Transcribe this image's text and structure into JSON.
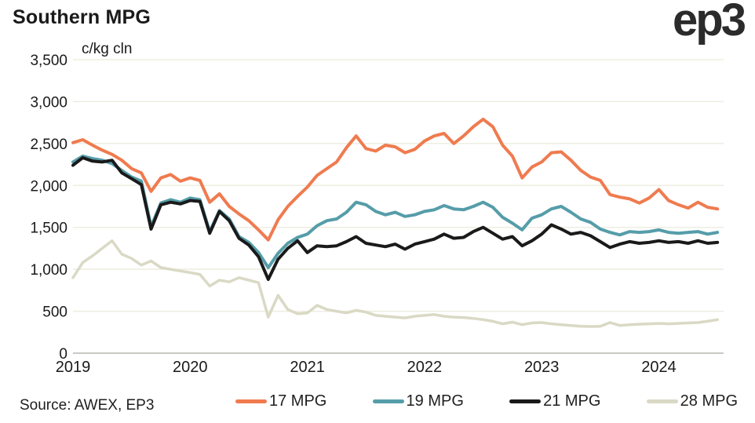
{
  "header": {
    "title": "Southern MPG",
    "subtitle": "c/kg cln",
    "logo": "ep3"
  },
  "footer": {
    "source": "Source: AWEX, EP3"
  },
  "colors": {
    "background": "#ffffff",
    "text": "#1a1a1a",
    "gridline": "#edede1",
    "zero_line": "#c9c9c4",
    "series_17": "#EF7B4F",
    "series_19": "#559DA9",
    "series_21": "#1A1A1A",
    "series_28": "#D9D9C5"
  },
  "chart_data": {
    "type": "line",
    "title": "Southern MPG",
    "xlabel": "",
    "ylabel": "c/kg cln",
    "ylim": [
      0,
      3500
    ],
    "ytick_step": 500,
    "yticks": [
      0,
      500,
      1000,
      1500,
      2000,
      2500,
      3000,
      3500
    ],
    "xticks": [
      2019,
      2020,
      2021,
      2022,
      2023,
      2024
    ],
    "x_start_year": 2019,
    "x_end_year": 2024.5,
    "points_per_year": 12,
    "grid": "horizontal",
    "legend_position": "bottom",
    "series": [
      {
        "name": "17 MPG",
        "color": "#EF7B4F",
        "values": [
          2510,
          2545,
          2480,
          2420,
          2370,
          2300,
          2200,
          2150,
          1930,
          2090,
          2130,
          2050,
          2090,
          2060,
          1800,
          1900,
          1750,
          1660,
          1580,
          1470,
          1350,
          1590,
          1750,
          1870,
          1980,
          2120,
          2200,
          2280,
          2450,
          2590,
          2440,
          2410,
          2480,
          2460,
          2390,
          2430,
          2530,
          2590,
          2620,
          2500,
          2590,
          2700,
          2790,
          2700,
          2480,
          2350,
          2090,
          2220,
          2280,
          2390,
          2400,
          2300,
          2180,
          2100,
          2060,
          1890,
          1860,
          1840,
          1790,
          1850,
          1950,
          1820,
          1770,
          1730,
          1800,
          1740,
          1720
        ]
      },
      {
        "name": "19 MPG",
        "color": "#559DA9",
        "values": [
          2280,
          2350,
          2320,
          2300,
          2260,
          2180,
          2100,
          2050,
          1510,
          1790,
          1830,
          1800,
          1850,
          1830,
          1450,
          1700,
          1600,
          1390,
          1320,
          1200,
          1020,
          1190,
          1310,
          1380,
          1420,
          1520,
          1580,
          1600,
          1680,
          1800,
          1770,
          1690,
          1650,
          1680,
          1630,
          1650,
          1690,
          1710,
          1760,
          1720,
          1710,
          1750,
          1800,
          1740,
          1620,
          1550,
          1470,
          1610,
          1650,
          1720,
          1750,
          1680,
          1600,
          1560,
          1480,
          1440,
          1410,
          1450,
          1440,
          1450,
          1470,
          1440,
          1430,
          1440,
          1450,
          1420,
          1440
        ]
      },
      {
        "name": "21 MPG",
        "color": "#1A1A1A",
        "values": [
          2240,
          2330,
          2290,
          2280,
          2300,
          2150,
          2080,
          2010,
          1480,
          1770,
          1800,
          1780,
          1820,
          1810,
          1430,
          1690,
          1580,
          1370,
          1290,
          1150,
          880,
          1120,
          1250,
          1340,
          1200,
          1280,
          1270,
          1280,
          1330,
          1390,
          1310,
          1290,
          1270,
          1300,
          1240,
          1300,
          1330,
          1360,
          1420,
          1370,
          1380,
          1450,
          1500,
          1430,
          1360,
          1390,
          1280,
          1340,
          1420,
          1530,
          1480,
          1420,
          1440,
          1400,
          1330,
          1260,
          1300,
          1330,
          1310,
          1320,
          1340,
          1320,
          1330,
          1310,
          1340,
          1310,
          1320
        ]
      },
      {
        "name": "28 MPG",
        "color": "#D9D9C5",
        "values": [
          900,
          1080,
          1160,
          1250,
          1340,
          1180,
          1130,
          1050,
          1100,
          1020,
          1000,
          980,
          960,
          940,
          800,
          870,
          850,
          900,
          870,
          840,
          430,
          690,
          520,
          470,
          480,
          570,
          520,
          500,
          480,
          510,
          490,
          450,
          440,
          430,
          420,
          440,
          450,
          460,
          440,
          430,
          425,
          415,
          400,
          380,
          350,
          370,
          340,
          360,
          365,
          350,
          340,
          330,
          320,
          318,
          320,
          365,
          330,
          340,
          345,
          350,
          355,
          350,
          355,
          360,
          365,
          380,
          400
        ]
      }
    ]
  }
}
